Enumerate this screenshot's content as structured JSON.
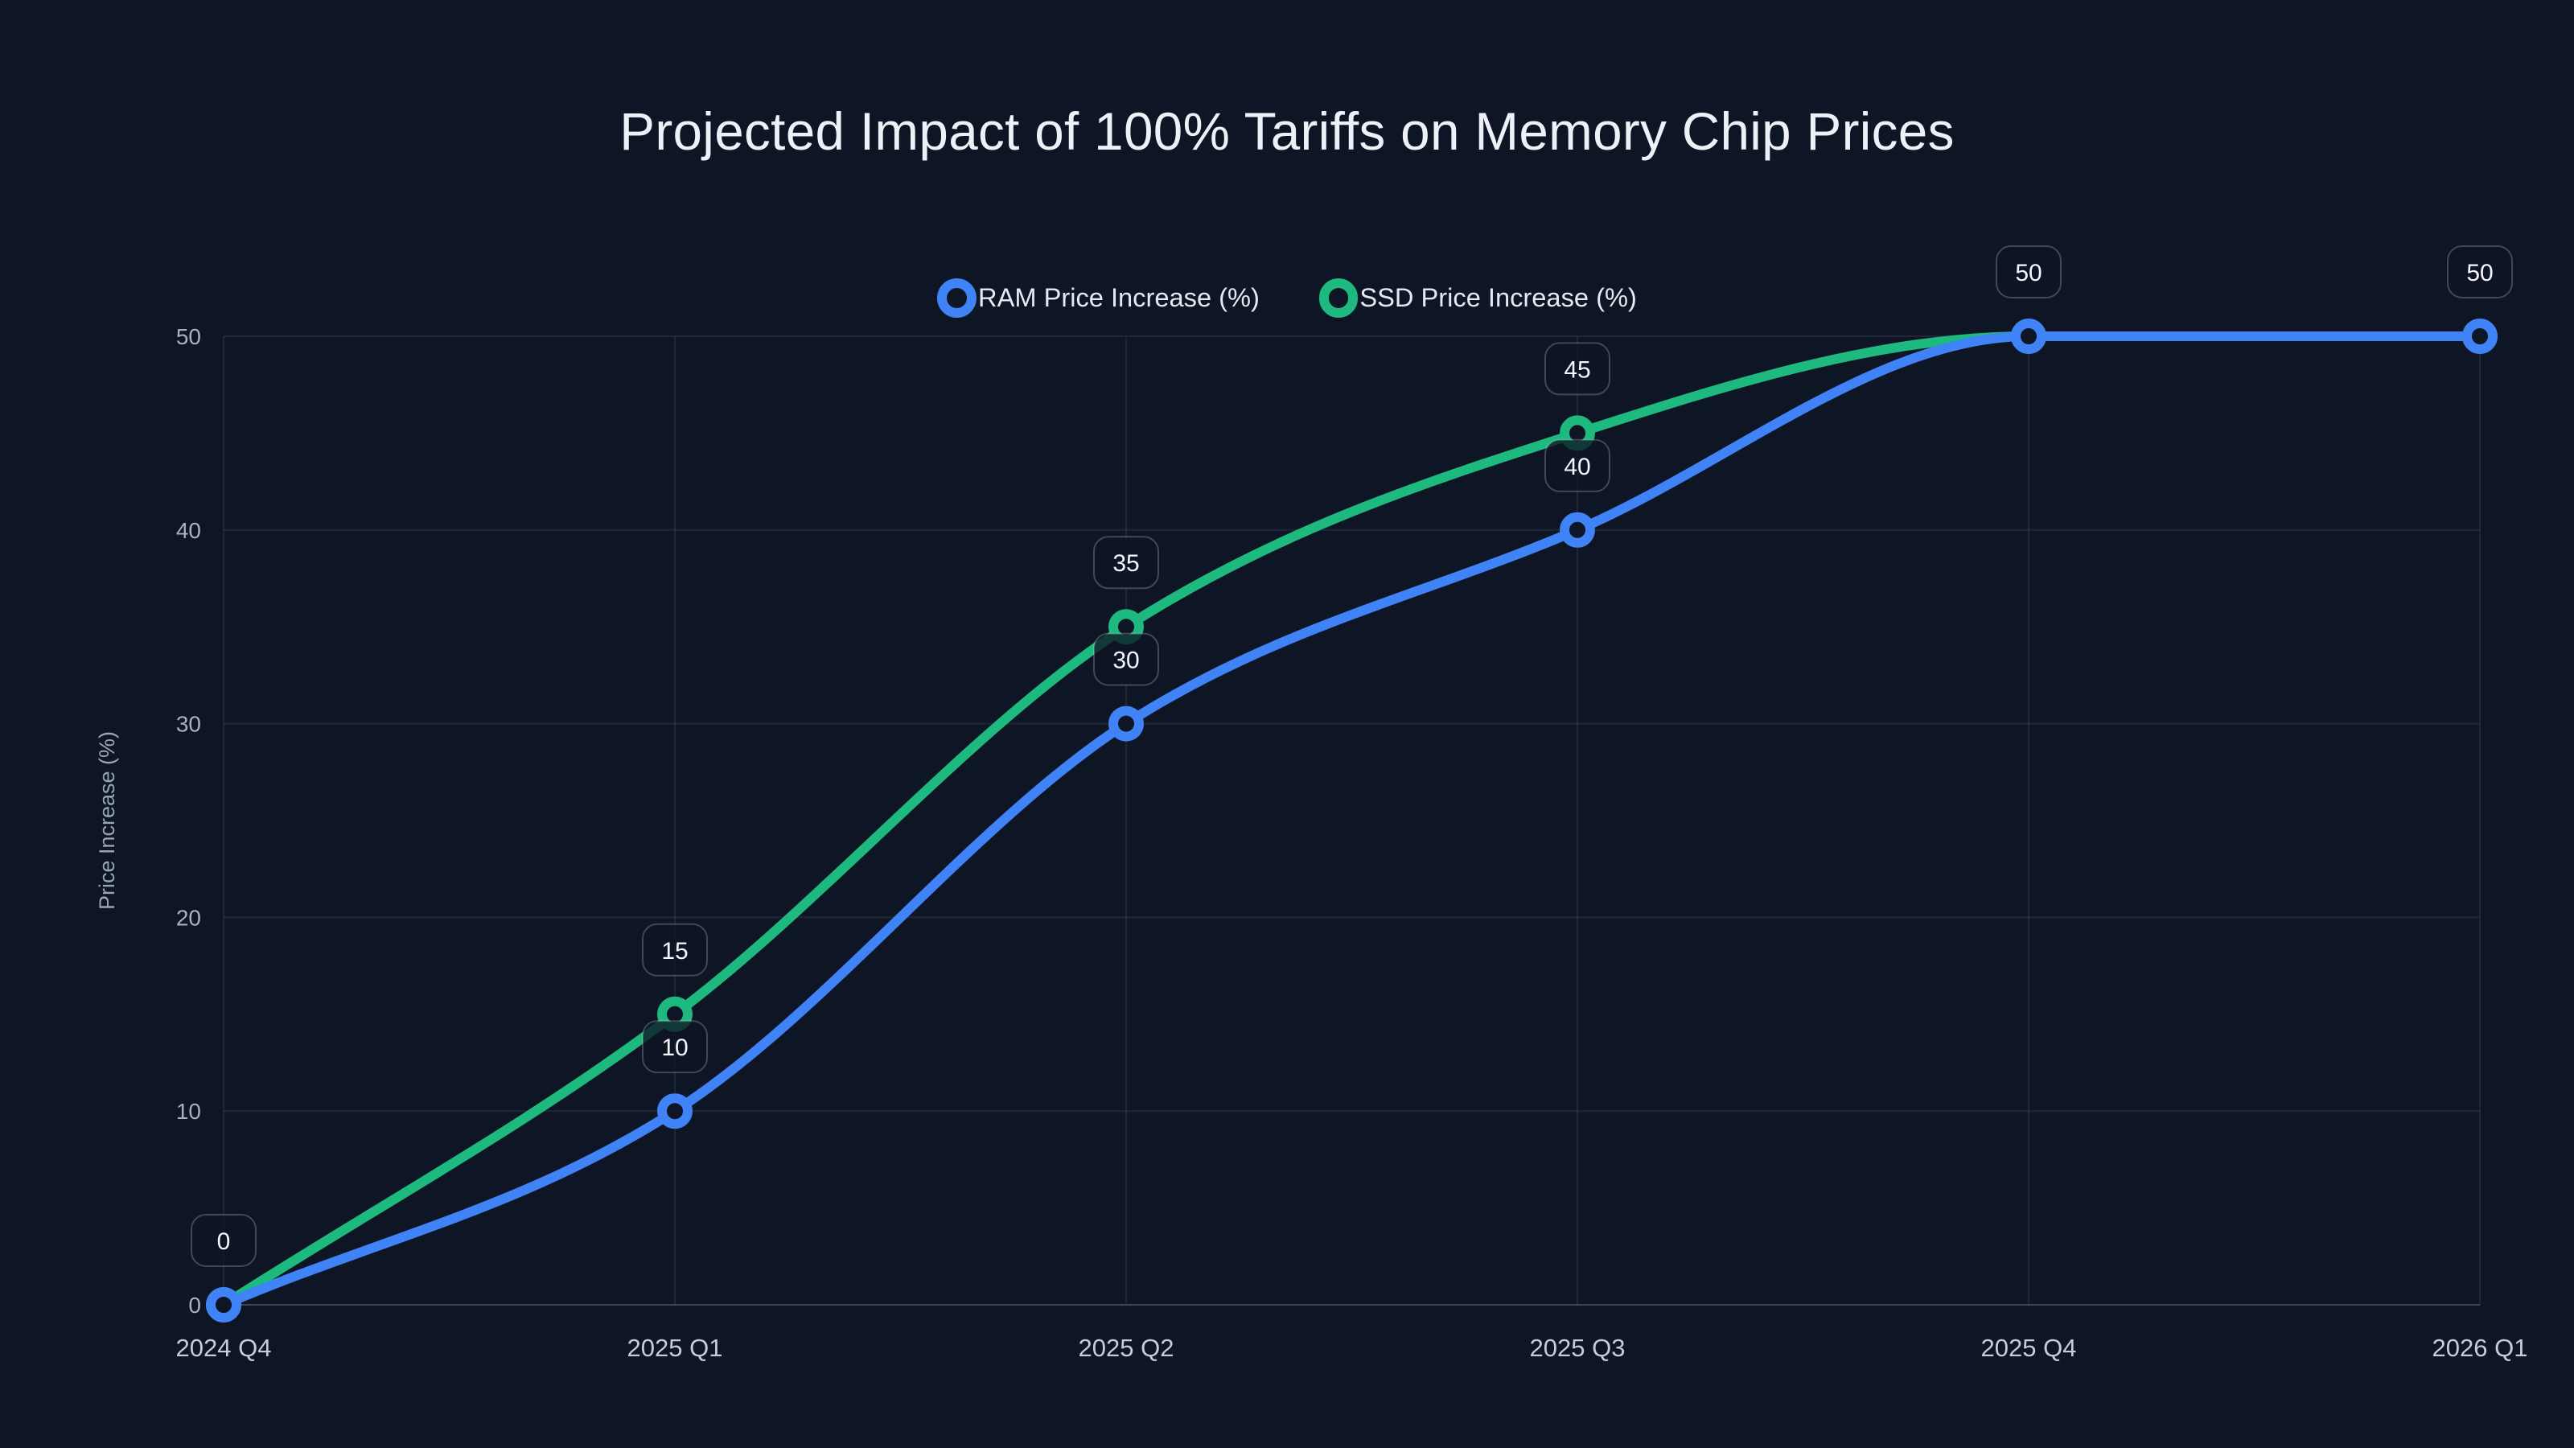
{
  "colors": {
    "background": "#0e1524",
    "title_text": "#eef2f8",
    "legend_text": "#e4e9f2",
    "axis_tick_text": "#a7b1c2",
    "category_text": "#c5cdda",
    "axis_title_text": "#9aa5b4",
    "grid_line": "#94a3b821",
    "baseline": "#94a3b859",
    "badge_fill": "#0e1524c7",
    "badge_border": "#ffffff38",
    "badge_text": "#f4f7fb",
    "ram_blue": "#3f83f7",
    "ssd_green": "#1eb97e"
  },
  "chart_data": {
    "type": "line",
    "title": "Projected Impact of 100% Tariffs on Memory Chip Prices",
    "ylabel": "Price Increase (%)",
    "xlabel": "",
    "categories": [
      "2024 Q4",
      "2025 Q1",
      "2025 Q2",
      "2025 Q3",
      "2025 Q4",
      "2026 Q1"
    ],
    "series": [
      {
        "name": "RAM Price Increase (%)",
        "color": "#3f83f7",
        "values": [
          0,
          10,
          30,
          40,
          50,
          50
        ]
      },
      {
        "name": "SSD Price Increase (%)",
        "color": "#1eb97e",
        "values": [
          0,
          15,
          35,
          45,
          50,
          50
        ]
      }
    ],
    "y_ticks": [
      0,
      10,
      20,
      30,
      40,
      50
    ],
    "ylim": [
      0,
      50
    ],
    "grid": true,
    "legend_position": "top-center",
    "curve": "monotone",
    "show_point_labels": true,
    "point_label_style": "rounded badge above point, duplicate values at same x shown once"
  }
}
